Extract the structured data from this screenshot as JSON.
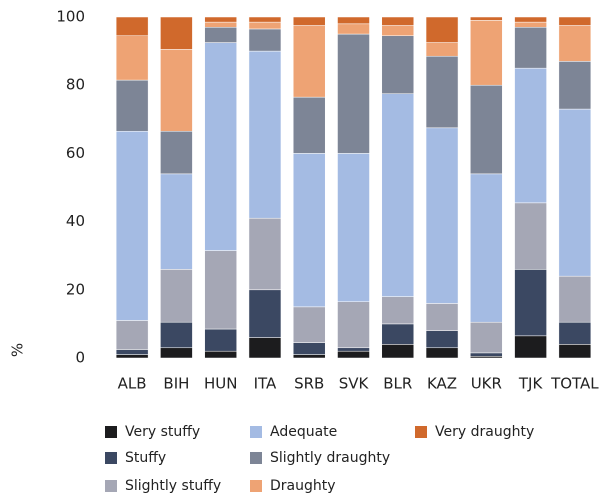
{
  "chart_data": {
    "type": "stacked_bar",
    "y_label": "%",
    "categories": [
      "ALB",
      "BIH",
      "HUN",
      "ITA",
      "SRB",
      "SVK",
      "BLR",
      "KAZ",
      "UKR",
      "TJK",
      "TOTAL"
    ],
    "ylim": [
      0,
      100
    ],
    "yticks": [
      0,
      20,
      40,
      60,
      80,
      100
    ],
    "legend": "bottom",
    "series": [
      {
        "name": "Very stuffy",
        "color": "#1c1c1e",
        "values": [
          1,
          3,
          2,
          6,
          1,
          2,
          4,
          3,
          0.5,
          6.5,
          4
        ]
      },
      {
        "name": "Stuffy",
        "color": "#3b4862",
        "values": [
          1.5,
          7.5,
          6.5,
          14,
          3.5,
          1,
          6,
          5,
          1,
          19.5,
          6.5
        ]
      },
      {
        "name": "Slightly stuffy",
        "color": "#a5a7b5",
        "values": [
          8.5,
          15.5,
          23,
          21,
          10.5,
          13.5,
          8,
          8,
          9,
          19.5,
          13.5
        ]
      },
      {
        "name": "Adequate",
        "color": "#a4bbe3",
        "values": [
          55.5,
          28,
          61,
          49,
          45,
          43.5,
          59.5,
          51.5,
          43.5,
          39.5,
          49
        ]
      },
      {
        "name": "Slightly draughty",
        "color": "#7d8596",
        "values": [
          15,
          12.5,
          4.5,
          6.5,
          16.5,
          35,
          17,
          21,
          26,
          12,
          14
        ]
      },
      {
        "name": "Draughty",
        "color": "#eea374",
        "values": [
          13,
          24,
          1.5,
          2,
          21,
          3,
          3,
          4,
          19,
          1.5,
          10.5
        ]
      },
      {
        "name": "Very draughty",
        "color": "#d0692c",
        "values": [
          5.5,
          9.5,
          1.5,
          1.5,
          2.5,
          2,
          2.5,
          7.5,
          1,
          1.5,
          2.5
        ]
      }
    ]
  }
}
